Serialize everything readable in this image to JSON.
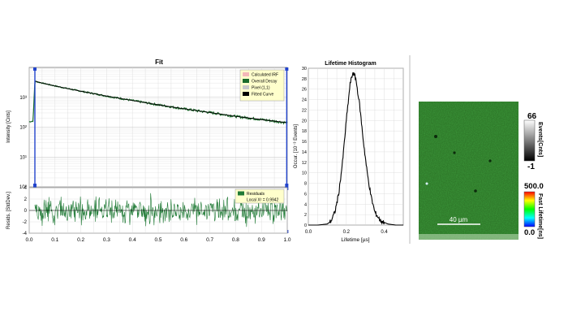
{
  "colors": {
    "decay": "#1a6b2a",
    "fit_curve": "#000000",
    "irf_marker": "#2244cc",
    "residual": "#1f7a35",
    "legend_bg": "#ffffcc",
    "image_bg": "#2f7a2a",
    "plot_bg": "#ffffff",
    "grid": "#d8d8d8"
  },
  "chart_data": [
    {
      "type": "line",
      "title": "Fit",
      "ylabel": "Intensity [Cnts]",
      "xlabel": "",
      "ylog": true,
      "xlim": [
        0.0,
        1.0
      ],
      "ylim_exponent": [
        0,
        4
      ],
      "ytick_labels": [
        "10⁰",
        "10¹",
        "10²",
        "10³"
      ],
      "xtick_labels": [
        "0.0",
        "0.1",
        "0.2",
        "0.3",
        "0.4",
        "0.5",
        "0.6",
        "0.7",
        "0.8",
        "0.9",
        "1.0"
      ],
      "legend": [
        "Calculated IRF",
        "Overall Decay",
        "Pixel (1,1)",
        "Fitted Curve"
      ],
      "legend_colors": [
        "#f4b8b8",
        "#1a6b2a",
        "#c8c8c8",
        "#000000"
      ],
      "legend_position": "top-right",
      "grid": true,
      "irf_markers_x": [
        0.022,
        0.998
      ],
      "series": [
        {
          "name": "Overall Decay",
          "x": [
            0.0,
            0.015,
            0.022,
            0.03,
            0.05,
            0.1,
            0.15,
            0.2,
            0.3,
            0.4,
            0.5,
            0.6,
            0.7,
            0.8,
            0.9,
            1.0
          ],
          "y": [
            150,
            160,
            3500,
            3300,
            3000,
            2400,
            1950,
            1600,
            1100,
            780,
            560,
            410,
            310,
            230,
            180,
            140
          ]
        },
        {
          "name": "Fitted Curve",
          "x": [
            0.022,
            0.05,
            0.1,
            0.15,
            0.2,
            0.3,
            0.4,
            0.5,
            0.6,
            0.7,
            0.8,
            0.9,
            0.998
          ],
          "y": [
            3500,
            3000,
            2400,
            1950,
            1600,
            1100,
            780,
            560,
            410,
            310,
            230,
            180,
            142
          ]
        }
      ]
    },
    {
      "type": "line",
      "title": "",
      "ylabel": "Resids. [StdDev.]",
      "xlim": [
        0.0,
        1.0
      ],
      "ylim": [
        -4,
        4
      ],
      "ytick_labels": [
        "4",
        "2",
        "0",
        "-2",
        "-4"
      ],
      "legend": [
        "Residuals"
      ],
      "annotation": "Local X² = 0.9942",
      "series": [
        {
          "name": "Residuals",
          "noise_amplitude_stddev": 2,
          "mean": 0
        }
      ]
    },
    {
      "type": "line",
      "title": "Lifetime Histogram",
      "xlabel": "Lifetime [µs]",
      "ylabel": "Occur. [10⁻³ Events]",
      "xlim": [
        0.0,
        0.5
      ],
      "ylim": [
        0,
        30
      ],
      "xtick_labels": [
        "0.0",
        "0.2",
        "0.4"
      ],
      "ytick_labels": [
        "0",
        "2",
        "4",
        "6",
        "8",
        "10",
        "12",
        "14",
        "16",
        "18",
        "20",
        "22",
        "24",
        "26",
        "28",
        "30"
      ],
      "grid": true,
      "series": [
        {
          "name": "",
          "x": [
            0.0,
            0.05,
            0.1,
            0.12,
            0.14,
            0.16,
            0.18,
            0.2,
            0.22,
            0.235,
            0.25,
            0.27,
            0.29,
            0.31,
            0.33,
            0.35,
            0.38,
            0.42,
            0.46,
            0.5
          ],
          "y": [
            0,
            0,
            0.2,
            0.8,
            2.5,
            6,
            12,
            20,
            27,
            29.2,
            28,
            23,
            16,
            10,
            5.5,
            2.5,
            0.8,
            0.2,
            0,
            0
          ]
        }
      ]
    }
  ],
  "image_panel": {
    "scale_bar_label": "40 µm",
    "intensity_colorbar": {
      "max_label": "66",
      "min_label": "-1",
      "title": "Events[Cnts]"
    },
    "lifetime_colorbar": {
      "max_label": "500.0",
      "min_label": "0.0",
      "title": "Fast Lifetime[ns]"
    }
  }
}
